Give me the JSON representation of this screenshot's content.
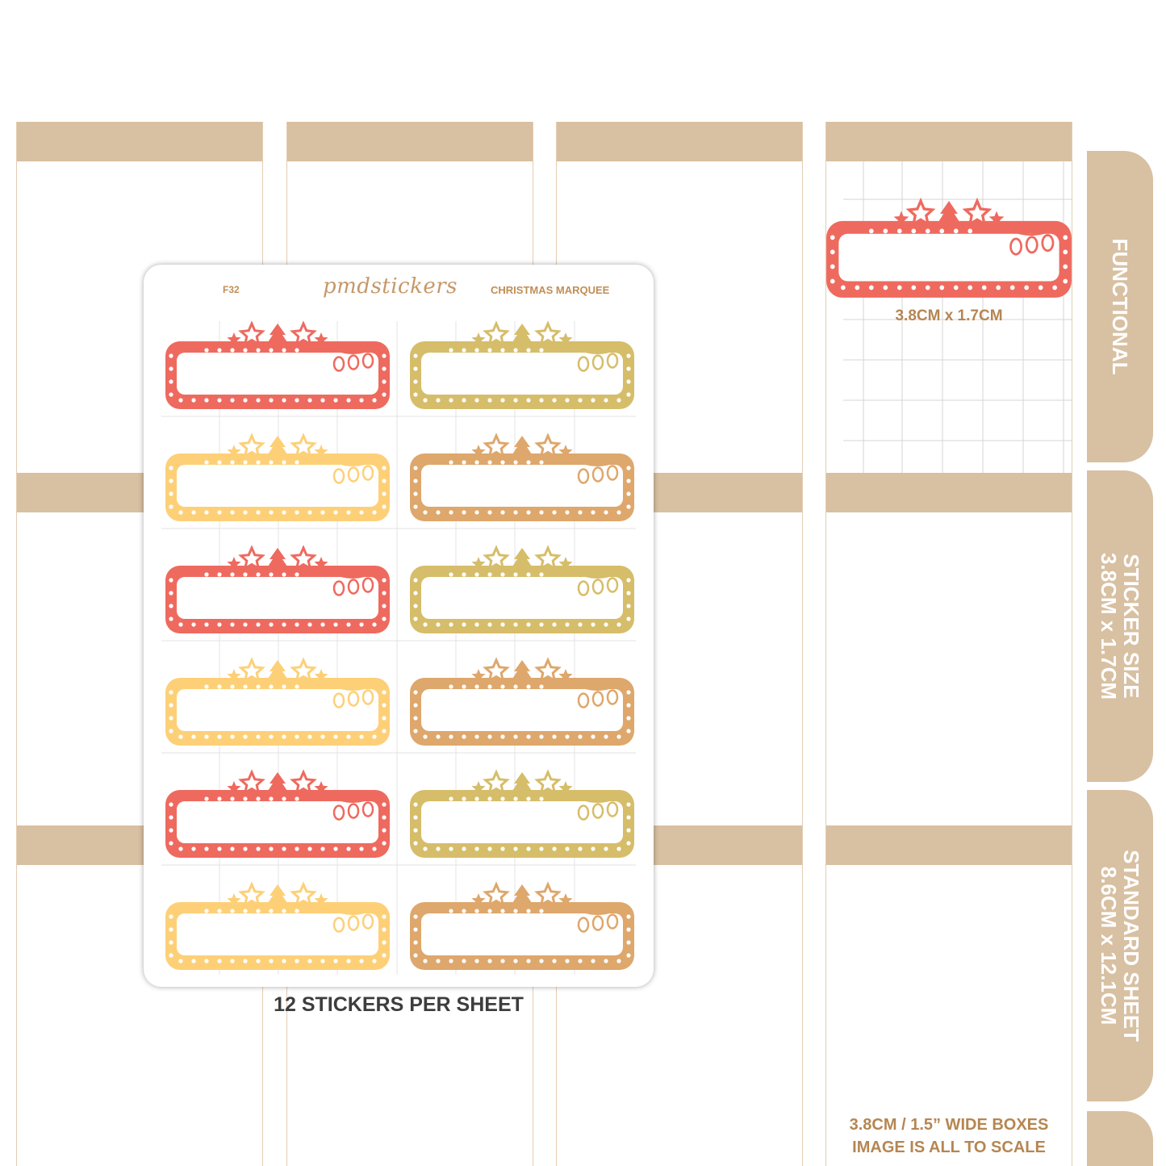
{
  "sheet": {
    "code": "F32",
    "brand": "pmdstickers",
    "title": "CHRISTMAS MARQUEE"
  },
  "sample_sticker_size": "3.8CM x 1.7CM",
  "per_sheet_label": "12 STICKERS PER SHEET",
  "tabs": [
    {
      "lines": [
        "FUNCTIONAL"
      ]
    },
    {
      "lines": [
        "STICKER SIZE",
        "3.8CM x 1.7CM"
      ]
    },
    {
      "lines": [
        "STANDARD SHEET",
        "8.6CM x 12.1CM"
      ]
    }
  ],
  "footer_note": {
    "line1": "3.8CM / 1.5” WIDE BOXES",
    "line2": "IMAGE IS ALL TO SCALE"
  },
  "colors": {
    "band": "#d8c0a2",
    "red": "#ee6a5f",
    "yellow": "#fdd078",
    "olive": "#d6bd6a",
    "tan": "#dea76c",
    "caption": "#b58652",
    "label_dark": "#3d3d3d"
  },
  "stickers": [
    {
      "color": "red"
    },
    {
      "color": "olive"
    },
    {
      "color": "yellow"
    },
    {
      "color": "tan"
    },
    {
      "color": "red"
    },
    {
      "color": "olive"
    },
    {
      "color": "yellow"
    },
    {
      "color": "tan"
    },
    {
      "color": "red"
    },
    {
      "color": "olive"
    },
    {
      "color": "yellow"
    },
    {
      "color": "tan"
    }
  ]
}
